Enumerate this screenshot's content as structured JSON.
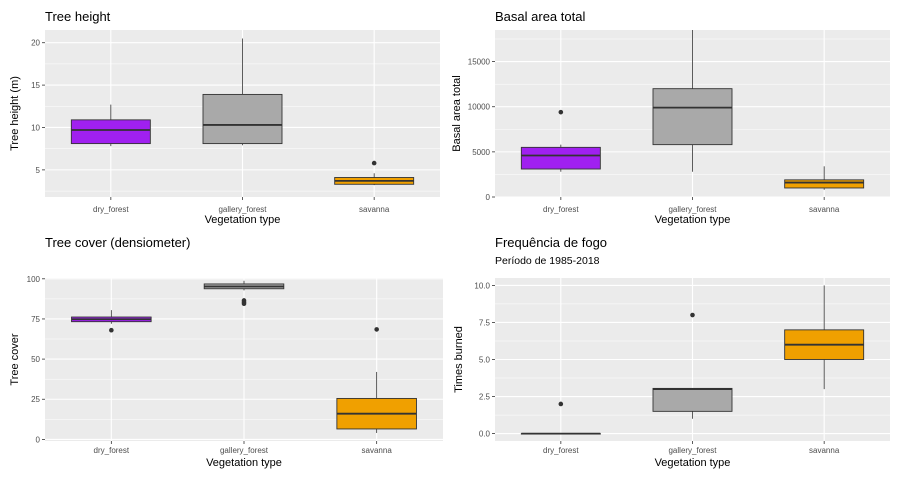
{
  "colors": {
    "panel_bg": "#ebebeb",
    "grid": "#ffffff",
    "dry_forest": "#a020f0",
    "gallery_forest": "#a9a9a9",
    "savanna": "#f0a000",
    "outline": "#333333"
  },
  "chart_data": [
    {
      "type": "box",
      "title": "Tree height",
      "subtitle": "",
      "xlabel": "Vegetation type",
      "ylabel": "Tree height (m)",
      "categories": [
        "dry_forest",
        "gallery_forest",
        "savanna"
      ],
      "ylim": [
        1.8,
        21.5
      ],
      "yticks": [
        5,
        10,
        15,
        20
      ],
      "ytick_labels": [
        "5",
        "10",
        "15",
        "20"
      ],
      "boxes": [
        {
          "category": "dry_forest",
          "min": 7.8,
          "q1": 8.1,
          "median": 9.7,
          "q3": 10.9,
          "max": 12.7,
          "outliers": []
        },
        {
          "category": "gallery_forest",
          "min": 7.9,
          "q1": 8.1,
          "median": 10.3,
          "q3": 13.9,
          "max": 20.5,
          "outliers": []
        },
        {
          "category": "savanna",
          "min": 3.2,
          "q1": 3.3,
          "median": 3.7,
          "q3": 4.1,
          "max": 4.6,
          "outliers": [
            5.8
          ]
        }
      ]
    },
    {
      "type": "box",
      "title": "Basal area total",
      "subtitle": "",
      "xlabel": "Vegetation type",
      "ylabel": "Basal area total",
      "categories": [
        "dry_forest",
        "gallery_forest",
        "savanna"
      ],
      "ylim": [
        0,
        18500
      ],
      "yticks": [
        0,
        5000,
        10000,
        15000
      ],
      "ytick_labels": [
        "0",
        "5000",
        "10000",
        "15000"
      ],
      "boxes": [
        {
          "category": "dry_forest",
          "min": 2800,
          "q1": 3100,
          "median": 4600,
          "q3": 5500,
          "max": 5800,
          "outliers": [
            9400
          ]
        },
        {
          "category": "gallery_forest",
          "min": 2800,
          "q1": 5800,
          "median": 9900,
          "q3": 12000,
          "max": 18500,
          "outliers": []
        },
        {
          "category": "savanna",
          "min": 800,
          "q1": 1000,
          "median": 1600,
          "q3": 1900,
          "max": 3400,
          "outliers": []
        }
      ]
    },
    {
      "type": "box",
      "title": "Tree cover (densiometer)",
      "subtitle": "",
      "xlabel": "Vegetation type",
      "ylabel": "Tree cover",
      "categories": [
        "dry_forest",
        "gallery_forest",
        "savanna"
      ],
      "ylim": [
        -1,
        100.5
      ],
      "yticks": [
        0,
        25,
        50,
        75,
        100
      ],
      "ytick_labels": [
        "0",
        "25",
        "50",
        "75",
        "100"
      ],
      "boxes": [
        {
          "category": "dry_forest",
          "min": 72,
          "q1": 73.3,
          "median": 74.8,
          "q3": 76.2,
          "max": 80.5,
          "outliers": [
            68
          ]
        },
        {
          "category": "gallery_forest",
          "min": 92.8,
          "q1": 93.8,
          "median": 95.2,
          "q3": 96.8,
          "max": 98.8,
          "outliers": [
            86.5,
            85.5,
            84.5
          ]
        },
        {
          "category": "savanna",
          "min": 4,
          "q1": 6.5,
          "median": 16,
          "q3": 25.5,
          "max": 42,
          "outliers": [
            68.5
          ]
        }
      ]
    },
    {
      "type": "box",
      "title": "Frequência de fogo",
      "subtitle": "Período de 1985-2018",
      "xlabel": "Vegetation type",
      "ylabel": "Times burned",
      "categories": [
        "dry_forest",
        "gallery_forest",
        "savanna"
      ],
      "ylim": [
        -0.5,
        10.5
      ],
      "yticks": [
        0,
        2.5,
        5,
        7.5,
        10
      ],
      "ytick_labels": [
        "0.0",
        "2.5",
        "5.0",
        "7.5",
        "10.0"
      ],
      "boxes": [
        {
          "category": "dry_forest",
          "min": 0,
          "q1": 0,
          "median": 0,
          "q3": 0,
          "max": 0,
          "outliers": [
            2
          ]
        },
        {
          "category": "gallery_forest",
          "min": 1,
          "q1": 1.5,
          "median": 3,
          "q3": 3.05,
          "max": 3.05,
          "outliers": [
            8
          ]
        },
        {
          "category": "savanna",
          "min": 3,
          "q1": 5,
          "median": 6,
          "q3": 7,
          "max": 10,
          "outliers": []
        }
      ]
    }
  ]
}
